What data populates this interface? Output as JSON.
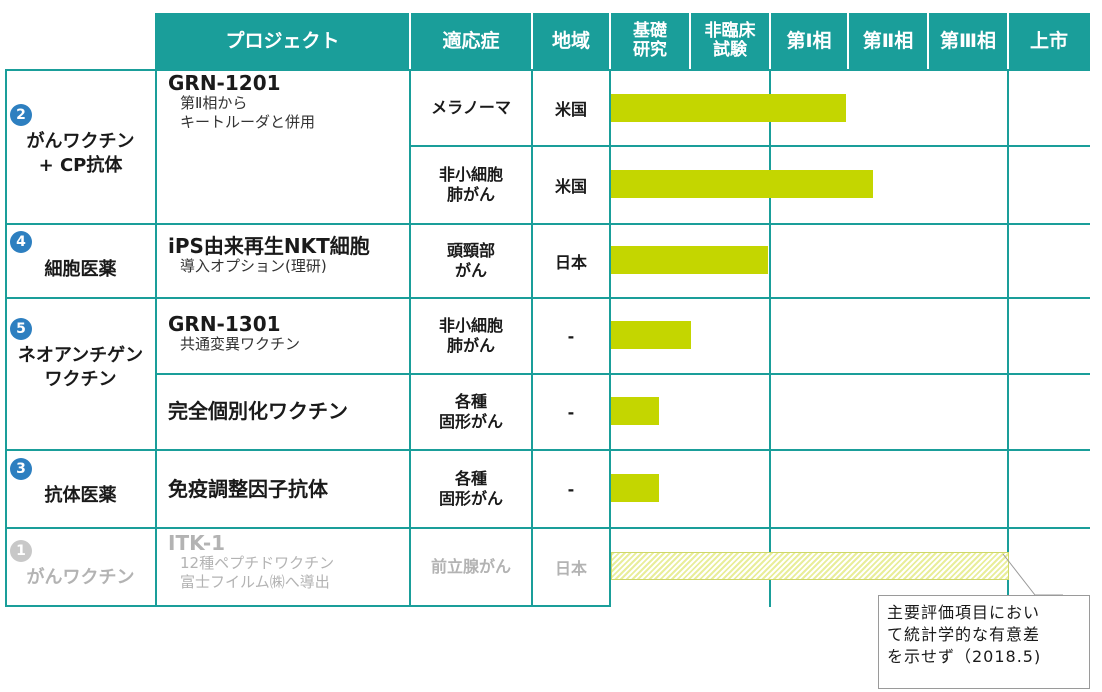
{
  "header": {
    "project": "プロジェクト",
    "indication": "適応症",
    "region": "地域",
    "phases": [
      "基礎\n研究",
      "非臨床\n試験",
      "第Ⅰ相",
      "第Ⅱ相",
      "第Ⅲ相",
      "上市"
    ]
  },
  "categories": [
    {
      "num": "2",
      "label": "がんワクチン\n+ CP抗体"
    },
    {
      "num": "4",
      "label": "細胞医薬"
    },
    {
      "num": "5",
      "label": "ネオアンチゲン\nワクチン"
    },
    {
      "num": "3",
      "label": "抗体医薬"
    },
    {
      "num": "1",
      "label": "がんワクチン"
    }
  ],
  "projects": [
    {
      "title": "GRN-1201",
      "subtitle": "第Ⅱ相から\nキートルーダと併用"
    },
    {
      "title": "iPS由来再生NKT細胞",
      "subtitle": "導入オプション(理研)"
    },
    {
      "title": "GRN-1301",
      "subtitle": "共通変異ワクチン"
    },
    {
      "title": "完全個別化ワクチン",
      "subtitle": ""
    },
    {
      "title": "免疫調整因子抗体",
      "subtitle": ""
    },
    {
      "title": "ITK-1",
      "subtitle": "12種ペプチドワクチン\n富士フイルム㈱へ導出"
    }
  ],
  "rows": [
    {
      "indication": "メラノーマ",
      "region": "米国"
    },
    {
      "indication": "非小細胞\n肺がん",
      "region": "米国"
    },
    {
      "indication": "頭頸部\nがん",
      "region": "日本"
    },
    {
      "indication": "非小細胞\n肺がん",
      "region": "-"
    },
    {
      "indication": "各種\n固形がん",
      "region": "-"
    },
    {
      "indication": "各種\n固形がん",
      "region": "-"
    },
    {
      "indication": "前立腺がん",
      "region": "日本"
    }
  ],
  "chart_data": {
    "type": "bar",
    "orientation": "horizontal",
    "title": "",
    "phase_scale": [
      "基礎研究",
      "非臨床試験",
      "第Ⅰ相",
      "第Ⅱ相",
      "第Ⅲ相",
      "上市"
    ],
    "xlim": [
      0,
      6
    ],
    "note": "values are progress in phase units from start of 基礎研究",
    "categories": [
      "GRN-1201 メラノーマ",
      "GRN-1201 非小細胞肺がん",
      "iPS由来再生NKT細胞",
      "GRN-1301",
      "完全個別化ワクチン",
      "免疫調整因子抗体",
      "ITK-1"
    ],
    "values": [
      2.95,
      3.3,
      1.97,
      1.0,
      0.6,
      0.6,
      5.0
    ],
    "styles": [
      "solid",
      "solid",
      "solid",
      "solid",
      "solid",
      "solid",
      "hatched"
    ],
    "colors": {
      "bar": "#c4d600",
      "header": "#1a9e9a",
      "number_circle": "#2d7fc0",
      "inactive": "#b3b3b3"
    }
  },
  "callout": {
    "text": "主要評価項目におい\nて統計学的な有意差\nを示せず（2018.5)"
  }
}
